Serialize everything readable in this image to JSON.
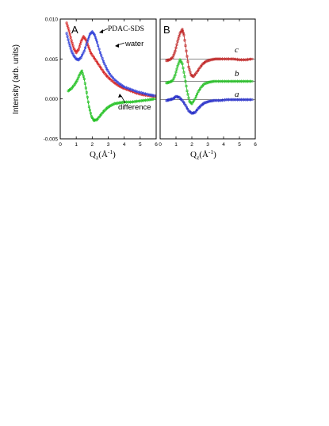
{
  "chart_data": [
    {
      "panel": "A",
      "type": "scatter",
      "ylabel": "Intensity (arb. units)",
      "xlabel_main": "Q",
      "xlabel_sub": "z",
      "xlabel_unit": "(Å",
      "xlabel_exp": "-1",
      "xlabel_close": ")",
      "xlim": [
        0,
        6
      ],
      "ylim": [
        -0.005,
        0.01
      ],
      "xticks": [
        0,
        1,
        2,
        3,
        4,
        5,
        6
      ],
      "yticks": [
        -0.005,
        0,
        0.005,
        0.01
      ],
      "ytick_labels": [
        "-0.005",
        "0.000",
        "0.005",
        "0.010"
      ],
      "annotations": [
        "PDAC-SDS",
        "water",
        "difference"
      ],
      "series": [
        {
          "name": "PDAC-SDS",
          "color": "#d42020",
          "points": [
            [
              0.4,
              0.0095
            ],
            [
              0.55,
              0.0085
            ],
            [
              0.7,
              0.0073
            ],
            [
              0.85,
              0.0063
            ],
            [
              1.0,
              0.0058
            ],
            [
              1.15,
              0.0062
            ],
            [
              1.3,
              0.0072
            ],
            [
              1.45,
              0.0078
            ],
            [
              1.6,
              0.0074
            ],
            [
              1.75,
              0.0066
            ],
            [
              1.9,
              0.0058
            ],
            [
              2.1,
              0.0052
            ],
            [
              2.3,
              0.0046
            ],
            [
              2.5,
              0.004
            ],
            [
              2.7,
              0.0034
            ],
            [
              2.9,
              0.0029
            ],
            [
              3.1,
              0.0025
            ],
            [
              3.4,
              0.002
            ],
            [
              3.7,
              0.0016
            ],
            [
              4.0,
              0.0013
            ],
            [
              4.4,
              0.001
            ],
            [
              4.8,
              0.0007
            ],
            [
              5.2,
              0.0005
            ],
            [
              5.6,
              0.0004
            ],
            [
              5.9,
              0.0003
            ]
          ]
        },
        {
          "name": "water",
          "color": "#3040d8",
          "points": [
            [
              0.4,
              0.0082
            ],
            [
              0.55,
              0.007
            ],
            [
              0.7,
              0.006
            ],
            [
              0.85,
              0.0054
            ],
            [
              1.0,
              0.005
            ],
            [
              1.15,
              0.0049
            ],
            [
              1.3,
              0.0052
            ],
            [
              1.5,
              0.006
            ],
            [
              1.7,
              0.0072
            ],
            [
              1.85,
              0.0081
            ],
            [
              2.0,
              0.0084
            ],
            [
              2.15,
              0.008
            ],
            [
              2.3,
              0.0071
            ],
            [
              2.5,
              0.0058
            ],
            [
              2.7,
              0.0047
            ],
            [
              2.9,
              0.0038
            ],
            [
              3.1,
              0.0031
            ],
            [
              3.4,
              0.0024
            ],
            [
              3.7,
              0.0019
            ],
            [
              4.0,
              0.0015
            ],
            [
              4.4,
              0.0012
            ],
            [
              4.8,
              0.0009
            ],
            [
              5.2,
              0.0007
            ],
            [
              5.6,
              0.0005
            ],
            [
              5.9,
              0.0004
            ]
          ]
        },
        {
          "name": "difference",
          "color": "#20c020",
          "points": [
            [
              0.5,
              0.001
            ],
            [
              0.7,
              0.0013
            ],
            [
              0.9,
              0.0018
            ],
            [
              1.05,
              0.0023
            ],
            [
              1.2,
              0.003
            ],
            [
              1.35,
              0.0035
            ],
            [
              1.5,
              0.0025
            ],
            [
              1.65,
              0.0008
            ],
            [
              1.8,
              -0.001
            ],
            [
              1.95,
              -0.0022
            ],
            [
              2.1,
              -0.0027
            ],
            [
              2.3,
              -0.0026
            ],
            [
              2.5,
              -0.0021
            ],
            [
              2.7,
              -0.0016
            ],
            [
              2.9,
              -0.0012
            ],
            [
              3.1,
              -0.0009
            ],
            [
              3.4,
              -0.0006
            ],
            [
              3.7,
              -0.0005
            ],
            [
              4.0,
              -0.0004
            ],
            [
              4.4,
              -0.0004
            ],
            [
              4.8,
              -0.0003
            ],
            [
              5.2,
              -0.0002
            ],
            [
              5.6,
              -0.0001
            ],
            [
              5.9,
              0.0
            ]
          ]
        }
      ]
    },
    {
      "panel": "B",
      "type": "scatter",
      "xlabel_main": "Q",
      "xlabel_sub": "z",
      "xlabel_unit": "(Å",
      "xlabel_exp": "-1",
      "xlabel_close": ")",
      "xlim": [
        0,
        6
      ],
      "ylim": [
        -0.005,
        0.01
      ],
      "xticks": [
        0,
        1,
        2,
        3,
        4,
        5,
        6
      ],
      "series": [
        {
          "name": "c",
          "color": "#c02828",
          "baseline": 0.005,
          "points": [
            [
              0.4,
              0.0048
            ],
            [
              0.6,
              0.0049
            ],
            [
              0.8,
              0.0052
            ],
            [
              0.95,
              0.006
            ],
            [
              1.1,
              0.0072
            ],
            [
              1.25,
              0.0082
            ],
            [
              1.4,
              0.0087
            ],
            [
              1.5,
              0.008
            ],
            [
              1.65,
              0.006
            ],
            [
              1.8,
              0.004
            ],
            [
              1.95,
              0.003
            ],
            [
              2.1,
              0.0028
            ],
            [
              2.3,
              0.0033
            ],
            [
              2.5,
              0.0039
            ],
            [
              2.7,
              0.0044
            ],
            [
              2.9,
              0.0047
            ],
            [
              3.2,
              0.0049
            ],
            [
              3.5,
              0.005
            ],
            [
              3.8,
              0.005
            ],
            [
              4.2,
              0.005
            ],
            [
              4.6,
              0.005
            ],
            [
              5.0,
              0.0049
            ],
            [
              5.4,
              0.0049
            ],
            [
              5.8,
              0.005
            ]
          ]
        },
        {
          "name": "b",
          "color": "#28c028",
          "baseline": 0.0022,
          "points": [
            [
              0.4,
              0.002
            ],
            [
              0.6,
              0.0021
            ],
            [
              0.8,
              0.0023
            ],
            [
              0.95,
              0.003
            ],
            [
              1.1,
              0.0041
            ],
            [
              1.25,
              0.0049
            ],
            [
              1.4,
              0.0044
            ],
            [
              1.55,
              0.0028
            ],
            [
              1.7,
              0.001
            ],
            [
              1.85,
              -0.0003
            ],
            [
              2.0,
              -0.0006
            ],
            [
              2.2,
              0.0
            ],
            [
              2.4,
              0.0009
            ],
            [
              2.6,
              0.0015
            ],
            [
              2.8,
              0.0019
            ],
            [
              3.1,
              0.0021
            ],
            [
              3.4,
              0.0022
            ],
            [
              3.8,
              0.0022
            ],
            [
              4.2,
              0.0022
            ],
            [
              4.6,
              0.0022
            ],
            [
              5.0,
              0.0022
            ],
            [
              5.4,
              0.0022
            ],
            [
              5.8,
              0.0022
            ]
          ]
        },
        {
          "name": "a",
          "color": "#2830c8",
          "baseline": -0.0001,
          "points": [
            [
              0.4,
              -0.0002
            ],
            [
              0.6,
              -0.0001
            ],
            [
              0.8,
              0.0
            ],
            [
              1.0,
              0.0003
            ],
            [
              1.2,
              0.0002
            ],
            [
              1.4,
              -0.0002
            ],
            [
              1.6,
              -0.0008
            ],
            [
              1.8,
              -0.0015
            ],
            [
              2.0,
              -0.0018
            ],
            [
              2.2,
              -0.0017
            ],
            [
              2.4,
              -0.0012
            ],
            [
              2.6,
              -0.0008
            ],
            [
              2.8,
              -0.0005
            ],
            [
              3.1,
              -0.0003
            ],
            [
              3.4,
              -0.0002
            ],
            [
              3.8,
              -0.0002
            ],
            [
              4.2,
              -0.0001
            ],
            [
              4.6,
              -0.0001
            ],
            [
              5.0,
              -0.0001
            ],
            [
              5.4,
              -0.0001
            ],
            [
              5.8,
              -0.0001
            ]
          ]
        }
      ]
    }
  ]
}
